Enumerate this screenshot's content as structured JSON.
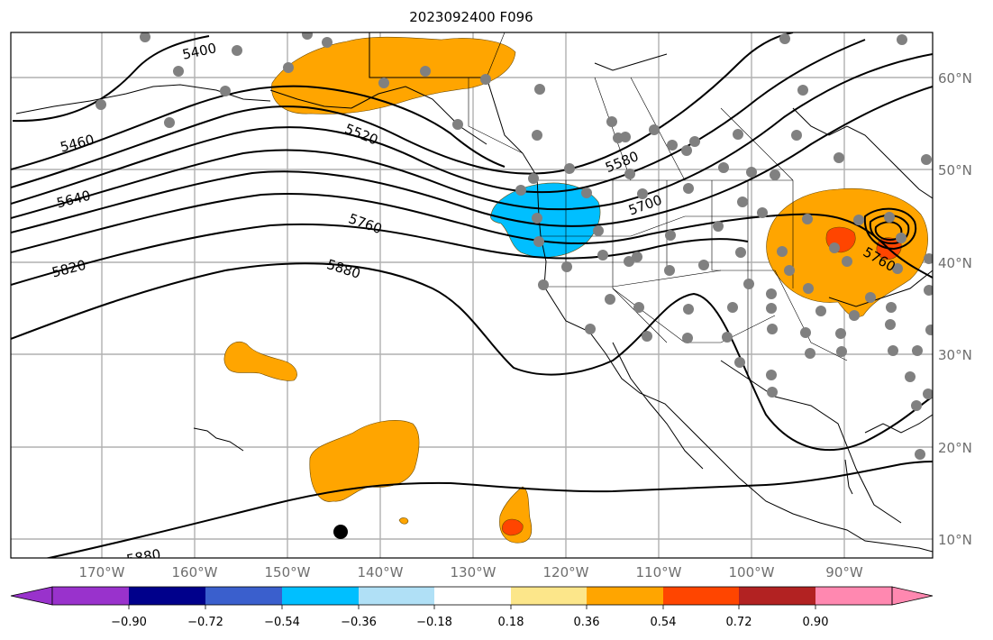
{
  "title": "2023092400 F096",
  "lon_labels": [
    "170°W",
    "160°W",
    "150°W",
    "140°W",
    "130°W",
    "120°W",
    "110°W",
    "100°W",
    "90°W"
  ],
  "lat_labels": [
    "60°N",
    "50°N",
    "40°N",
    "30°N",
    "20°N",
    "10°N"
  ],
  "contour_labels": [
    "5400",
    "5460",
    "5520",
    "5580",
    "5640",
    "5700",
    "5760",
    "5820",
    "5880",
    "5880",
    "5760"
  ],
  "colorbar": {
    "tick_labels": [
      "−0.90",
      "−0.72",
      "−0.54",
      "−0.36",
      "−0.18",
      "0.18",
      "0.36",
      "0.54",
      "0.72",
      "0.90"
    ],
    "colors": [
      "#9932cc",
      "#00008b",
      "#3a5fcd",
      "#00bfff",
      "#b0e0f6",
      "#ffffff",
      "#fce68a",
      "#ffa500",
      "#ff4500",
      "#b22222",
      "#ff88b0"
    ]
  },
  "fill_colors": {
    "negative": "#00bfff",
    "positive": "#ffa500",
    "strong_positive": "#ff4500"
  },
  "marker_colors": {
    "stations": "#808080",
    "highlight": "#000000"
  }
}
